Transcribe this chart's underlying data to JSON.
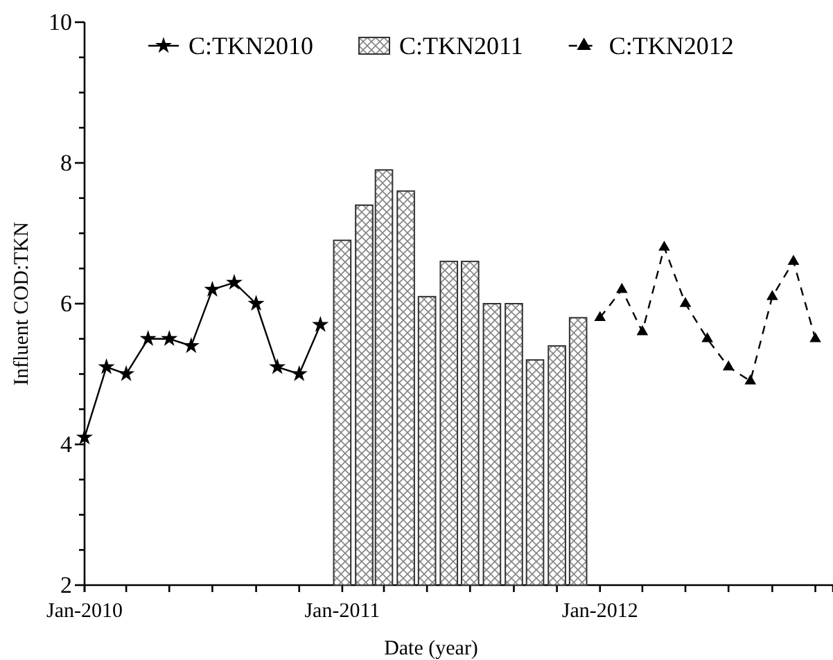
{
  "chart_data": {
    "type": "line",
    "xlabel": "Date (year)",
    "ylabel": "Influent COD:TKN",
    "xlim": [
      "2010-01-01",
      "2012-11-26"
    ],
    "xticks": [
      {
        "value": "2010-01-01",
        "label": "Jan-2010"
      },
      {
        "value": "2010-03-01",
        "label": null
      },
      {
        "value": "2010-05-01",
        "label": null
      },
      {
        "value": "2010-07-01",
        "label": null
      },
      {
        "value": "2010-09-01",
        "label": null
      },
      {
        "value": "2010-11-01",
        "label": null
      },
      {
        "value": "2011-01-01",
        "label": "Jan-2011"
      },
      {
        "value": "2011-03-01",
        "label": null
      },
      {
        "value": "2011-05-01",
        "label": null
      },
      {
        "value": "2011-07-01",
        "label": null
      },
      {
        "value": "2011-09-01",
        "label": null
      },
      {
        "value": "2011-11-01",
        "label": null
      },
      {
        "value": "2012-01-01",
        "label": "Jan-2012"
      },
      {
        "value": "2012-03-01",
        "label": null
      },
      {
        "value": "2012-05-01",
        "label": null
      },
      {
        "value": "2012-07-01",
        "label": null
      },
      {
        "value": "2012-09-01",
        "label": null
      },
      {
        "value": "2012-11-01",
        "label": null
      }
    ],
    "ylim": [
      2,
      10
    ],
    "yticks": [
      2,
      {
        "value": 2.5,
        "label": null
      },
      {
        "value": 3,
        "label": null
      },
      {
        "value": 3.5,
        "label": null
      },
      4,
      {
        "value": 4.5,
        "label": null
      },
      {
        "value": 5,
        "label": null
      },
      {
        "value": 5.5,
        "label": null
      },
      6,
      {
        "value": 6.5,
        "label": null
      },
      {
        "value": 7,
        "label": null
      },
      {
        "value": 7.5,
        "label": null
      },
      8,
      {
        "value": 8.5,
        "label": null
      },
      {
        "value": 9,
        "label": null
      },
      {
        "value": 9.5,
        "label": null
      },
      10
    ],
    "legend": "top",
    "series": [
      {
        "name": "C:TKN2010",
        "color": "#000000",
        "marker": "star",
        "line_style": "solid",
        "x": [
          "2010-01-01",
          "2010-02-01",
          "2010-03-01",
          "2010-04-01",
          "2010-05-01",
          "2010-06-01",
          "2010-07-01",
          "2010-08-01",
          "2010-09-01",
          "2010-10-01",
          "2010-11-01",
          "2010-12-01"
        ],
        "values": [
          4.1,
          5.1,
          5.0,
          5.5,
          5.5,
          5.4,
          6.2,
          6.3,
          6.0,
          5.1,
          5.0,
          5.7
        ]
      },
      {
        "name": "C:TKN2011",
        "type": "bar",
        "color": "#333333",
        "x": [
          "2011-01-01",
          "2011-02-01",
          "2011-03-01",
          "2011-04-01",
          "2011-05-01",
          "2011-06-01",
          "2011-07-01",
          "2011-08-01",
          "2011-09-01",
          "2011-10-01",
          "2011-11-01",
          "2011-12-01"
        ],
        "values": [
          6.9,
          7.4,
          7.9,
          7.6,
          6.1,
          6.6,
          6.6,
          6.0,
          6.0,
          5.2,
          5.4,
          5.8
        ]
      },
      {
        "name": "C:TKN2012",
        "color": "#000000",
        "marker": "triangle",
        "line_style": "dashed",
        "x": [
          "2012-01-01",
          "2012-02-01",
          "2012-03-01",
          "2012-04-01",
          "2012-05-01",
          "2012-06-01",
          "2012-07-01",
          "2012-08-01",
          "2012-09-01",
          "2012-10-01",
          "2012-11-01"
        ],
        "values": [
          5.8,
          6.2,
          5.6,
          6.8,
          6.0,
          5.5,
          5.1,
          4.9,
          6.1,
          6.6,
          5.5
        ]
      }
    ]
  }
}
